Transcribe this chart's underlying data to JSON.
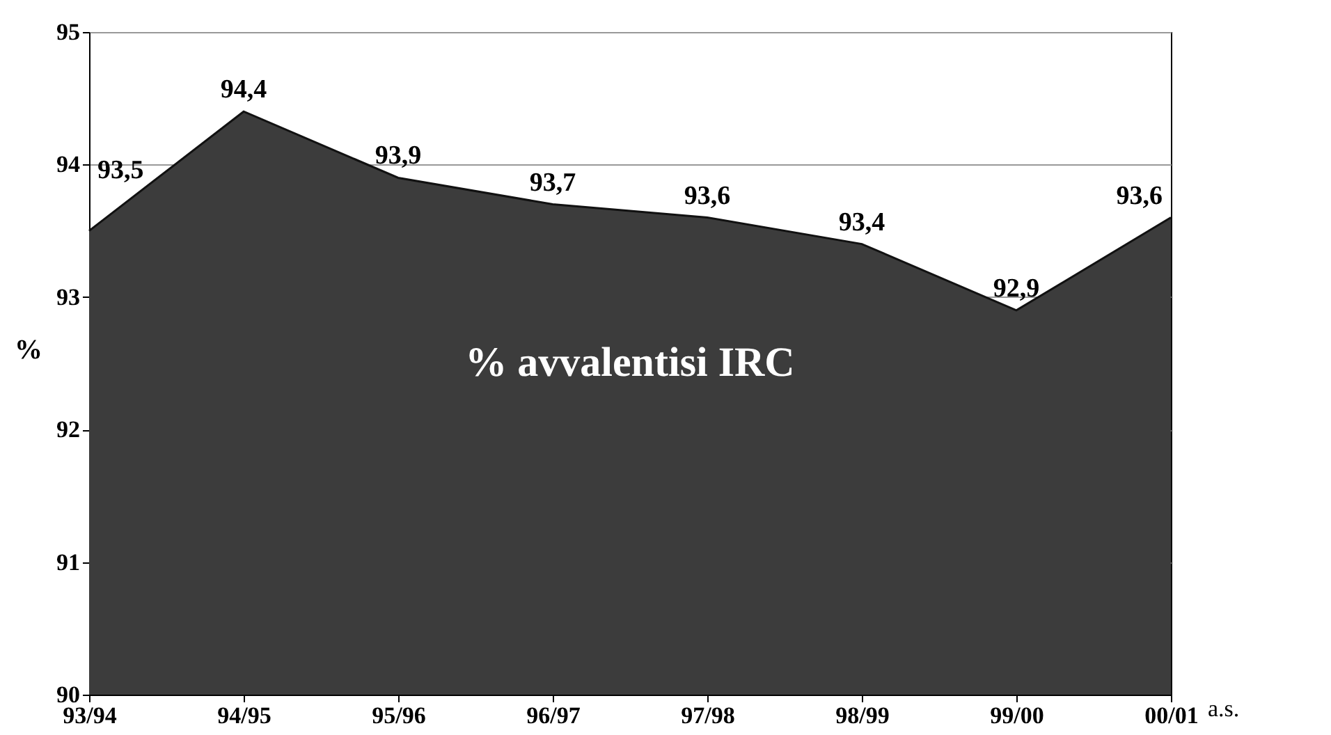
{
  "chart_data": {
    "type": "area",
    "xlabel": "a.s.",
    "ylabel": "%",
    "categories": [
      "93/94",
      "94/95",
      "95/96",
      "96/97",
      "97/98",
      "98/99",
      "99/00",
      "00/01"
    ],
    "values": [
      93.5,
      94.4,
      93.9,
      93.7,
      93.6,
      93.4,
      92.9,
      93.6
    ],
    "value_labels": [
      "93,5",
      "94,4",
      "93,9",
      "93,7",
      "93,6",
      "93,4",
      "92,9",
      "93,6"
    ],
    "color": "#3c3c3c",
    "ylim": [
      90,
      95
    ],
    "yticks": [
      90,
      91,
      92,
      93,
      94,
      95
    ],
    "grid": "y",
    "annotations": [
      "% avvalentisi IRC"
    ]
  }
}
